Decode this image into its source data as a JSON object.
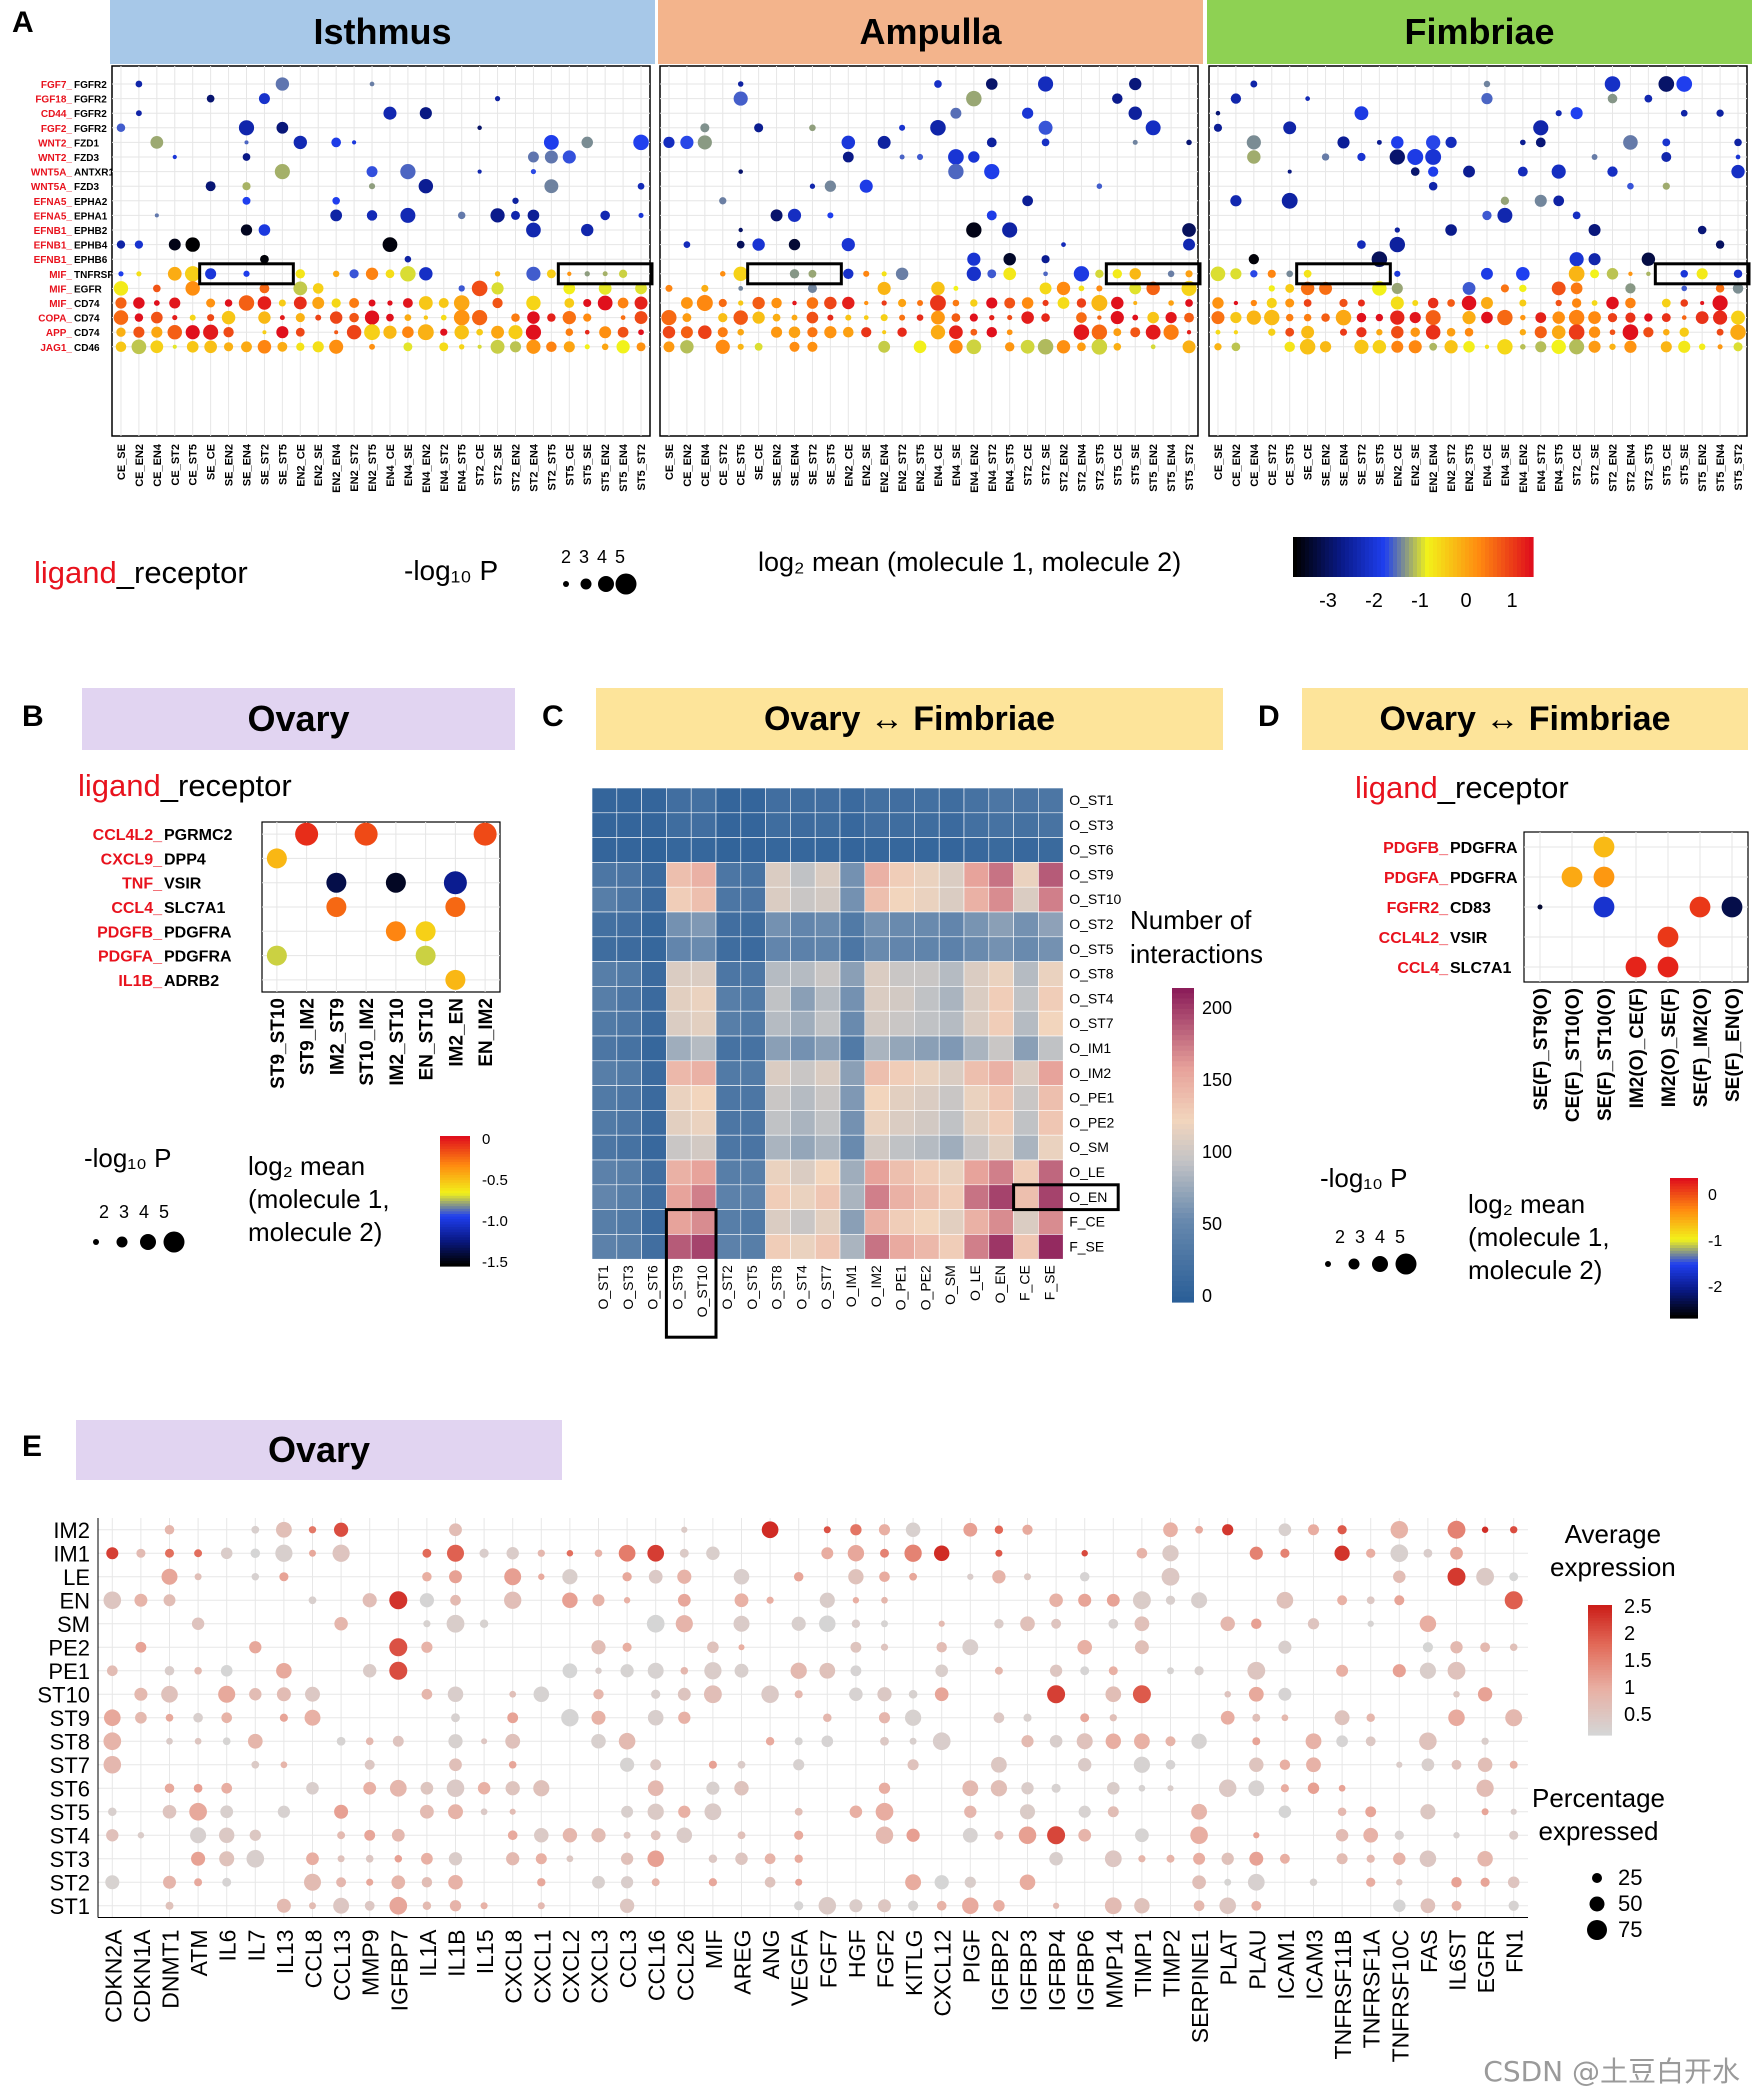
{
  "colors": {
    "ligand_red": "#e8121d",
    "isthmus_bg": "#a7c8e8",
    "ampulla_bg": "#f3b48c",
    "fimbriae_bg": "#8ed153",
    "ovary_bg": "#e1d4f1",
    "ovfim_bg": "#fde49a"
  },
  "panelA": {
    "letter": "A",
    "regions": [
      {
        "name": "Isthmus",
        "color": "#a7c8e8"
      },
      {
        "name": "Ampulla",
        "color": "#f3b48c"
      },
      {
        "name": "Fimbriae",
        "color": "#8ed153"
      }
    ],
    "legend": {
      "ligand": "ligand",
      "receptor": "_receptor",
      "p_label": "-log₁₀ P",
      "p_sizes": [
        "2",
        "3",
        "4",
        "5"
      ],
      "color_label": "log₂ mean (molecule 1, molecule 2)",
      "color_ticks": [
        "-3",
        "-2",
        "-1",
        "0",
        "1"
      ]
    }
  },
  "panelB": {
    "letter": "B",
    "title": "Ovary",
    "legend_ligand": "ligand",
    "legend_receptor": "_receptor",
    "p_label": "-log₁₀ P",
    "p_sizes": [
      "2",
      "3",
      "4",
      "5"
    ],
    "color_label_1": "log₂ mean",
    "color_label_2": "(molecule 1,",
    "color_label_3": "molecule 2)",
    "color_ticks": [
      "0",
      "-0.5",
      "-1.0",
      "-1.5"
    ]
  },
  "panelC": {
    "letter": "C",
    "title": "Ovary ↔ Fimbriae",
    "legend_title_1": "Number of",
    "legend_title_2": "interactions",
    "legend_ticks": [
      "200",
      "150",
      "100",
      "50",
      "0"
    ]
  },
  "panelD": {
    "letter": "D",
    "title": "Ovary ↔ Fimbriae",
    "legend_ligand": "ligand",
    "legend_receptor": "_receptor",
    "p_label": "-log₁₀ P",
    "p_sizes": [
      "2",
      "3",
      "4",
      "5"
    ],
    "color_label_1": "log₂ mean",
    "color_label_2": "(molecule 1,",
    "color_label_3": "molecule 2)",
    "color_ticks": [
      "0",
      "-1",
      "-2"
    ]
  },
  "panelE": {
    "letter": "E",
    "title": "Ovary",
    "avg_label_1": "Average",
    "avg_label_2": "expression",
    "avg_ticks": [
      "2.5",
      "2",
      "1.5",
      "1",
      "0.5"
    ],
    "pct_label_1": "Percentage",
    "pct_label_2": "expressed",
    "pct_ticks": [
      "25",
      "50",
      "75"
    ]
  },
  "watermark": "CSDN @土豆白开水",
  "chart_data": [
    {
      "id": "A",
      "type": "scatter",
      "title": "ligand_receptor dot plot (Isthmus / Ampulla / Fimbriae)",
      "size_var": "-log10 P",
      "color_var": "log2 mean (molecule 1, molecule 2)",
      "color_range": [
        -3.5,
        1.5
      ],
      "pairs": [
        {
          "ligand": "FGF7",
          "receptor": "FGFR2"
        },
        {
          "ligand": "FGF18",
          "receptor": "FGFR2"
        },
        {
          "ligand": "CD44",
          "receptor": "FGFR2"
        },
        {
          "ligand": "FGF2",
          "receptor": "FGFR2"
        },
        {
          "ligand": "WNT2",
          "receptor": "FZD1"
        },
        {
          "ligand": "WNT2",
          "receptor": "FZD3"
        },
        {
          "ligand": "WNT5A",
          "receptor": "ANTXR1"
        },
        {
          "ligand": "WNT5A",
          "receptor": "FZD3"
        },
        {
          "ligand": "EFNA5",
          "receptor": "EPHA2"
        },
        {
          "ligand": "EFNA5",
          "receptor": "EPHA1"
        },
        {
          "ligand": "EFNB1",
          "receptor": "EPHB2"
        },
        {
          "ligand": "EFNB1",
          "receptor": "EPHB4"
        },
        {
          "ligand": "EFNB1",
          "receptor": "EPHB6"
        },
        {
          "ligand": "MIF",
          "receptor": "TNFRSF14"
        },
        {
          "ligand": "MIF",
          "receptor": "EGFR"
        },
        {
          "ligand": "MIF",
          "receptor": "CD74"
        },
        {
          "ligand": "COPA",
          "receptor": "CD74"
        },
        {
          "ligand": "APP",
          "receptor": "CD74"
        },
        {
          "ligand": "JAG1",
          "receptor": "CD46"
        }
      ],
      "columns": [
        "CE_SE",
        "CE_EN2",
        "CE_EN4",
        "CE_ST2",
        "CE_ST5",
        "SE_CE",
        "SE_EN2",
        "SE_EN4",
        "SE_ST2",
        "SE_ST5",
        "EN2_CE",
        "EN2_SE",
        "EN2_EN4",
        "EN2_ST2",
        "EN2_ST5",
        "EN4_CE",
        "EN4_SE",
        "EN4_EN2",
        "EN4_ST2",
        "EN4_ST5",
        "ST2_CE",
        "ST2_SE",
        "ST2_EN2",
        "ST2_EN4",
        "ST2_ST5",
        "ST5_CE",
        "ST5_SE",
        "ST5_EN2",
        "ST5_EN4",
        "ST5_ST2"
      ],
      "highlight": "MIF_TNFRSF14 at SE_CE..SE_ST5 and ST5_CE..ST5_ST2 in each region"
    },
    {
      "id": "B",
      "type": "scatter",
      "title": "Ovary",
      "rows": [
        {
          "ligand": "CCL4L2",
          "receptor": "PGRMC2"
        },
        {
          "ligand": "CXCL9",
          "receptor": "DPP4"
        },
        {
          "ligand": "TNF",
          "receptor": "VSIR"
        },
        {
          "ligand": "CCL4",
          "receptor": "SLC7A1"
        },
        {
          "ligand": "PDGFB",
          "receptor": "PDGFRA"
        },
        {
          "ligand": "PDGFA",
          "receptor": "PDGFRA"
        },
        {
          "ligand": "IL1B",
          "receptor": "ADRB2"
        }
      ],
      "columns": [
        "ST9_ST10",
        "ST9_IM2",
        "IM2_ST9",
        "ST10_IM2",
        "IM2_ST10",
        "EN_ST10",
        "IM2_EN",
        "EN_IM2"
      ],
      "points": [
        {
          "row": 0,
          "col": 1,
          "value": 0.1,
          "size": 5
        },
        {
          "row": 0,
          "col": 3,
          "value": 0.0,
          "size": 5
        },
        {
          "row": 0,
          "col": 7,
          "value": 0.0,
          "size": 5
        },
        {
          "row": 1,
          "col": 0,
          "value": -0.4,
          "size": 4
        },
        {
          "row": 2,
          "col": 2,
          "value": -1.5,
          "size": 4
        },
        {
          "row": 2,
          "col": 4,
          "value": -1.6,
          "size": 4
        },
        {
          "row": 2,
          "col": 6,
          "value": -1.3,
          "size": 5
        },
        {
          "row": 3,
          "col": 2,
          "value": -0.1,
          "size": 4
        },
        {
          "row": 3,
          "col": 6,
          "value": -0.1,
          "size": 4
        },
        {
          "row": 4,
          "col": 4,
          "value": -0.2,
          "size": 4
        },
        {
          "row": 4,
          "col": 5,
          "value": -0.5,
          "size": 4
        },
        {
          "row": 5,
          "col": 0,
          "value": -0.7,
          "size": 4
        },
        {
          "row": 5,
          "col": 5,
          "value": -0.7,
          "size": 4
        },
        {
          "row": 6,
          "col": 6,
          "value": -0.4,
          "size": 4
        }
      ]
    },
    {
      "id": "C",
      "type": "heatmap",
      "title": "Ovary ↔ Fimbriae",
      "rows": [
        "O_ST1",
        "O_ST3",
        "O_ST6",
        "O_ST9",
        "O_ST10",
        "O_ST2",
        "O_ST5",
        "O_ST8",
        "O_ST4",
        "O_ST7",
        "O_IM1",
        "O_IM2",
        "O_PE1",
        "O_PE2",
        "O_SM",
        "O_LE",
        "O_EN",
        "F_CE",
        "F_SE"
      ],
      "columns": [
        "O_ST1",
        "O_ST3",
        "O_ST6",
        "O_ST9",
        "O_ST10",
        "O_ST2",
        "O_ST5",
        "O_ST8",
        "O_ST4",
        "O_ST7",
        "O_IM1",
        "O_IM2",
        "O_PE1",
        "O_PE2",
        "O_SM",
        "O_LE",
        "O_EN",
        "F_CE",
        "F_SE"
      ],
      "range": [
        0,
        215
      ],
      "highlight": "columns O_ST9, O_ST10 at rows F_CE, F_SE; row O_EN at columns F_CE, F_SE",
      "values": [
        [
          8,
          8,
          8,
          20,
          22,
          8,
          8,
          20,
          18,
          20,
          15,
          22,
          20,
          22,
          18,
          25,
          30,
          28,
          30
        ],
        [
          8,
          8,
          8,
          18,
          20,
          8,
          8,
          18,
          16,
          18,
          12,
          20,
          18,
          18,
          15,
          22,
          25,
          24,
          26
        ],
        [
          8,
          8,
          5,
          10,
          10,
          6,
          8,
          10,
          10,
          10,
          8,
          10,
          10,
          10,
          8,
          12,
          14,
          12,
          14
        ],
        [
          30,
          28,
          15,
          140,
          150,
          30,
          25,
          110,
          95,
          110,
          60,
          150,
          130,
          120,
          110,
          160,
          180,
          120,
          190
        ],
        [
          40,
          30,
          15,
          130,
          140,
          30,
          28,
          110,
          100,
          105,
          60,
          140,
          125,
          120,
          110,
          150,
          170,
          110,
          175
        ],
        [
          22,
          20,
          10,
          60,
          65,
          20,
          18,
          60,
          50,
          55,
          35,
          60,
          55,
          55,
          50,
          62,
          70,
          60,
          72
        ],
        [
          18,
          16,
          10,
          50,
          55,
          18,
          15,
          50,
          45,
          48,
          30,
          55,
          50,
          48,
          45,
          55,
          60,
          55,
          60
        ],
        [
          40,
          35,
          15,
          110,
          110,
          30,
          30,
          90,
          90,
          100,
          70,
          110,
          100,
          100,
          90,
          110,
          120,
          90,
          120
        ],
        [
          40,
          30,
          15,
          115,
          120,
          40,
          35,
          95,
          70,
          90,
          60,
          110,
          105,
          95,
          85,
          110,
          130,
          95,
          130
        ],
        [
          35,
          30,
          15,
          110,
          115,
          40,
          35,
          90,
          80,
          95,
          55,
          105,
          100,
          95,
          90,
          110,
          130,
          90,
          125
        ],
        [
          30,
          25,
          10,
          80,
          90,
          25,
          25,
          70,
          60,
          70,
          35,
          85,
          75,
          70,
          65,
          85,
          100,
          70,
          95
        ],
        [
          40,
          35,
          15,
          145,
          150,
          35,
          35,
          110,
          100,
          110,
          70,
          140,
          130,
          120,
          110,
          140,
          150,
          110,
          160
        ],
        [
          35,
          30,
          15,
          120,
          125,
          30,
          30,
          100,
          90,
          100,
          65,
          125,
          115,
          110,
          100,
          120,
          135,
          100,
          140
        ],
        [
          35,
          30,
          15,
          115,
          120,
          30,
          30,
          95,
          85,
          95,
          60,
          120,
          110,
          105,
          95,
          115,
          130,
          95,
          135
        ],
        [
          30,
          25,
          12,
          100,
          105,
          30,
          28,
          85,
          75,
          85,
          55,
          105,
          95,
          90,
          80,
          100,
          115,
          85,
          120
        ],
        [
          45,
          40,
          20,
          150,
          160,
          40,
          40,
          120,
          110,
          125,
          80,
          160,
          140,
          130,
          120,
          160,
          175,
          130,
          185
        ],
        [
          50,
          40,
          20,
          160,
          175,
          45,
          45,
          130,
          120,
          135,
          85,
          175,
          150,
          140,
          130,
          180,
          200,
          140,
          200
        ],
        [
          40,
          35,
          15,
          160,
          170,
          40,
          35,
          110,
          100,
          115,
          70,
          150,
          130,
          125,
          115,
          150,
          170,
          110,
          170
        ],
        [
          45,
          40,
          20,
          190,
          200,
          45,
          40,
          130,
          120,
          135,
          85,
          180,
          155,
          145,
          130,
          175,
          205,
          135,
          210
        ]
      ]
    },
    {
      "id": "D",
      "type": "scatter",
      "title": "Ovary ↔ Fimbriae",
      "rows": [
        {
          "ligand": "PDGFB",
          "receptor": "PDGFRA"
        },
        {
          "ligand": "PDGFA",
          "receptor": "PDGFRA"
        },
        {
          "ligand": "FGFR2",
          "receptor": "CD83"
        },
        {
          "ligand": "CCL4L2",
          "receptor": "VSIR"
        },
        {
          "ligand": "CCL4",
          "receptor": "SLC7A1"
        }
      ],
      "columns": [
        "SE(F)_ST9(O)",
        "CE(F)_ST10(O)",
        "SE(F)_ST10(O)",
        "IM2(O)_CE(F)",
        "IM2(O)_SE(F)",
        "SE(F)_IM2(O)",
        "SE(F)_EN(O)"
      ],
      "points": [
        {
          "row": 0,
          "col": 2,
          "value": -0.7,
          "size": 4
        },
        {
          "row": 1,
          "col": 1,
          "value": -0.6,
          "size": 4
        },
        {
          "row": 1,
          "col": 2,
          "value": -0.5,
          "size": 4
        },
        {
          "row": 2,
          "col": 0,
          "value": -2.4,
          "size": 1
        },
        {
          "row": 2,
          "col": 2,
          "value": -1.7,
          "size": 4
        },
        {
          "row": 2,
          "col": 5,
          "value": 0.0,
          "size": 4
        },
        {
          "row": 2,
          "col": 6,
          "value": -2.3,
          "size": 4
        },
        {
          "row": 3,
          "col": 4,
          "value": 0.0,
          "size": 4
        },
        {
          "row": 4,
          "col": 3,
          "value": 0.1,
          "size": 4
        },
        {
          "row": 4,
          "col": 4,
          "value": 0.1,
          "size": 4
        }
      ]
    },
    {
      "id": "E",
      "type": "scatter",
      "title": "Ovary",
      "size_var": "Percentage expressed",
      "color_var": "Average expression",
      "rows": [
        "IM2",
        "IM1",
        "LE",
        "EN",
        "SM",
        "PE2",
        "PE1",
        "ST10",
        "ST9",
        "ST8",
        "ST7",
        "ST6",
        "ST5",
        "ST4",
        "ST3",
        "ST2",
        "ST1"
      ],
      "genes": [
        "CDKN2A",
        "CDKN1A",
        "DNMT1",
        "ATM",
        "IL6",
        "IL7",
        "IL13",
        "CCL8",
        "CCL13",
        "MMP9",
        "IGFBP7",
        "IL1A",
        "IL1B",
        "IL15",
        "CXCL8",
        "CXCL1",
        "CXCL2",
        "CXCL3",
        "CCL3",
        "CCL16",
        "CCL26",
        "MIF",
        "AREG",
        "ANG",
        "VEGFA",
        "FGF7",
        "HGF",
        "FGF2",
        "KITLG",
        "CXCL12",
        "PIGF",
        "IGFBP2",
        "IGFBP3",
        "IGFBP4",
        "IGFBP6",
        "MMP14",
        "TIMP1",
        "TIMP2",
        "SERPINE1",
        "PLAT",
        "PLAU",
        "ICAM1",
        "ICAM3",
        "TNFRSF11B",
        "TNFRSF1A",
        "TNFRSF10C",
        "FAS",
        "IL6ST",
        "EGFR",
        "FN1"
      ],
      "size_ticks": [
        25,
        50,
        75
      ],
      "color_range": [
        0.3,
        2.6
      ]
    }
  ]
}
